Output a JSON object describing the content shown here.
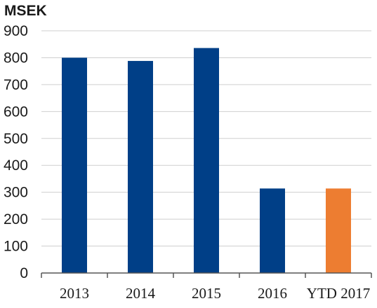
{
  "chart_data": {
    "type": "bar",
    "ylabel": "MSEK",
    "categories": [
      "2013",
      "2014",
      "2015",
      "2016",
      "YTD 2017"
    ],
    "values": [
      800,
      788,
      836,
      314,
      314
    ],
    "colors": [
      "#003f87",
      "#003f87",
      "#003f87",
      "#003f87",
      "#ed7d31"
    ],
    "ylim": [
      0,
      900
    ],
    "yticks": [
      0,
      100,
      200,
      300,
      400,
      500,
      600,
      700,
      800,
      900
    ],
    "grid": true,
    "legend": "none"
  }
}
